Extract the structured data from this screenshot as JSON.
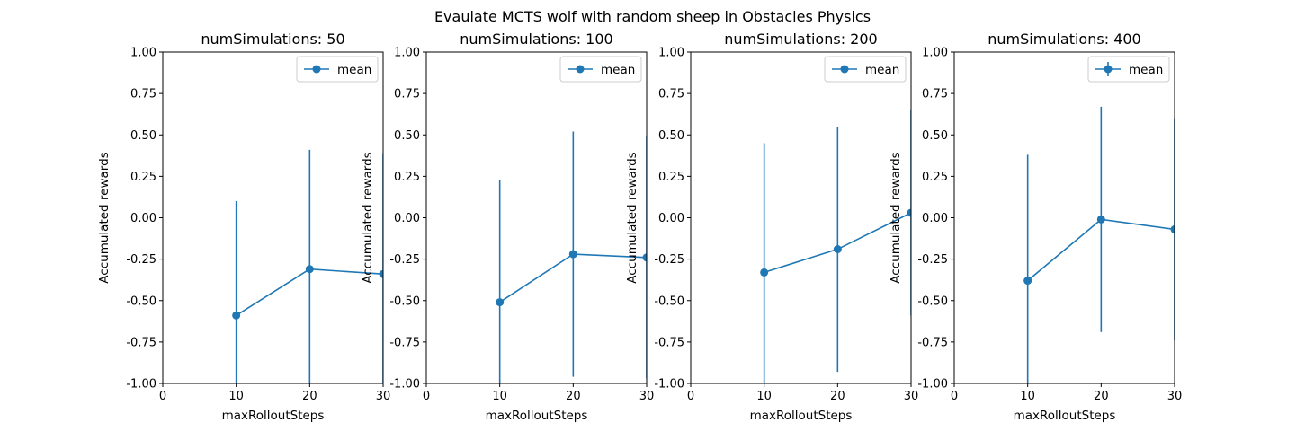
{
  "figure": {
    "suptitle": "Evaulate MCTS wolf with random sheep in Obstacles Physics",
    "colors": {
      "series": "#1f77b4",
      "axes": "#000000",
      "legend_border": "#cccccc",
      "background": "#ffffff"
    }
  },
  "chart_data": [
    {
      "type": "line",
      "title": "numSimulations: 50",
      "xlabel": "maxRolloutSteps",
      "ylabel": "Accumulated rewards",
      "xlim": [
        0,
        30
      ],
      "ylim": [
        -1.0,
        1.0
      ],
      "xticks": [
        "0",
        "10",
        "20",
        "30"
      ],
      "yticks": [
        "-1.00",
        "-0.75",
        "-0.50",
        "-0.25",
        "0.00",
        "0.25",
        "0.50",
        "0.75",
        "1.00"
      ],
      "legend": {
        "location": "upper right",
        "entries": [
          "mean"
        ],
        "marker": "circle"
      },
      "series": [
        {
          "name": "mean",
          "x": [
            10,
            20,
            30
          ],
          "y": [
            -0.59,
            -0.31,
            -0.34
          ],
          "yerr": [
            0.69,
            0.72,
            0.73
          ]
        }
      ]
    },
    {
      "type": "line",
      "title": "numSimulations: 100",
      "xlabel": "maxRolloutSteps",
      "ylabel": "Accumulated rewards",
      "xlim": [
        0,
        30
      ],
      "ylim": [
        -1.0,
        1.0
      ],
      "xticks": [
        "0",
        "10",
        "20",
        "30"
      ],
      "yticks": [
        "-1.00",
        "-0.75",
        "-0.50",
        "-0.25",
        "0.00",
        "0.25",
        "0.50",
        "0.75",
        "1.00"
      ],
      "legend": {
        "location": "upper right",
        "entries": [
          "mean"
        ],
        "marker": "circle"
      },
      "series": [
        {
          "name": "mean",
          "x": [
            10,
            20,
            30
          ],
          "y": [
            -0.51,
            -0.22,
            -0.24
          ],
          "yerr": [
            0.74,
            0.74,
            0.73
          ]
        }
      ]
    },
    {
      "type": "line",
      "title": "numSimulations: 200",
      "xlabel": "maxRolloutSteps",
      "ylabel": "Accumulated rewards",
      "xlim": [
        0,
        30
      ],
      "ylim": [
        -1.0,
        1.0
      ],
      "xticks": [
        "0",
        "10",
        "20",
        "30"
      ],
      "yticks": [
        "-1.00",
        "-0.75",
        "-0.50",
        "-0.25",
        "0.00",
        "0.25",
        "0.50",
        "0.75",
        "1.00"
      ],
      "legend": {
        "location": "upper right",
        "entries": [
          "mean"
        ],
        "marker": "circle"
      },
      "series": [
        {
          "name": "mean",
          "x": [
            10,
            20,
            30
          ],
          "y": [
            -0.33,
            -0.19,
            0.03
          ],
          "yerr": [
            0.78,
            0.74,
            0.62
          ]
        }
      ]
    },
    {
      "type": "line",
      "title": "numSimulations: 400",
      "xlabel": "maxRolloutSteps",
      "ylabel": "Accumulated rewards",
      "xlim": [
        0,
        30
      ],
      "ylim": [
        -1.0,
        1.0
      ],
      "xticks": [
        "0",
        "10",
        "20",
        "30"
      ],
      "yticks": [
        "-1.00",
        "-0.75",
        "-0.50",
        "-0.25",
        "0.00",
        "0.25",
        "0.50",
        "0.75",
        "1.00"
      ],
      "legend": {
        "location": "upper right",
        "entries": [
          "mean"
        ],
        "marker": "errorbar-circle"
      },
      "series": [
        {
          "name": "mean",
          "x": [
            10,
            20,
            30
          ],
          "y": [
            -0.38,
            -0.01,
            -0.07
          ],
          "yerr": [
            0.76,
            0.68,
            0.67
          ]
        }
      ]
    }
  ]
}
